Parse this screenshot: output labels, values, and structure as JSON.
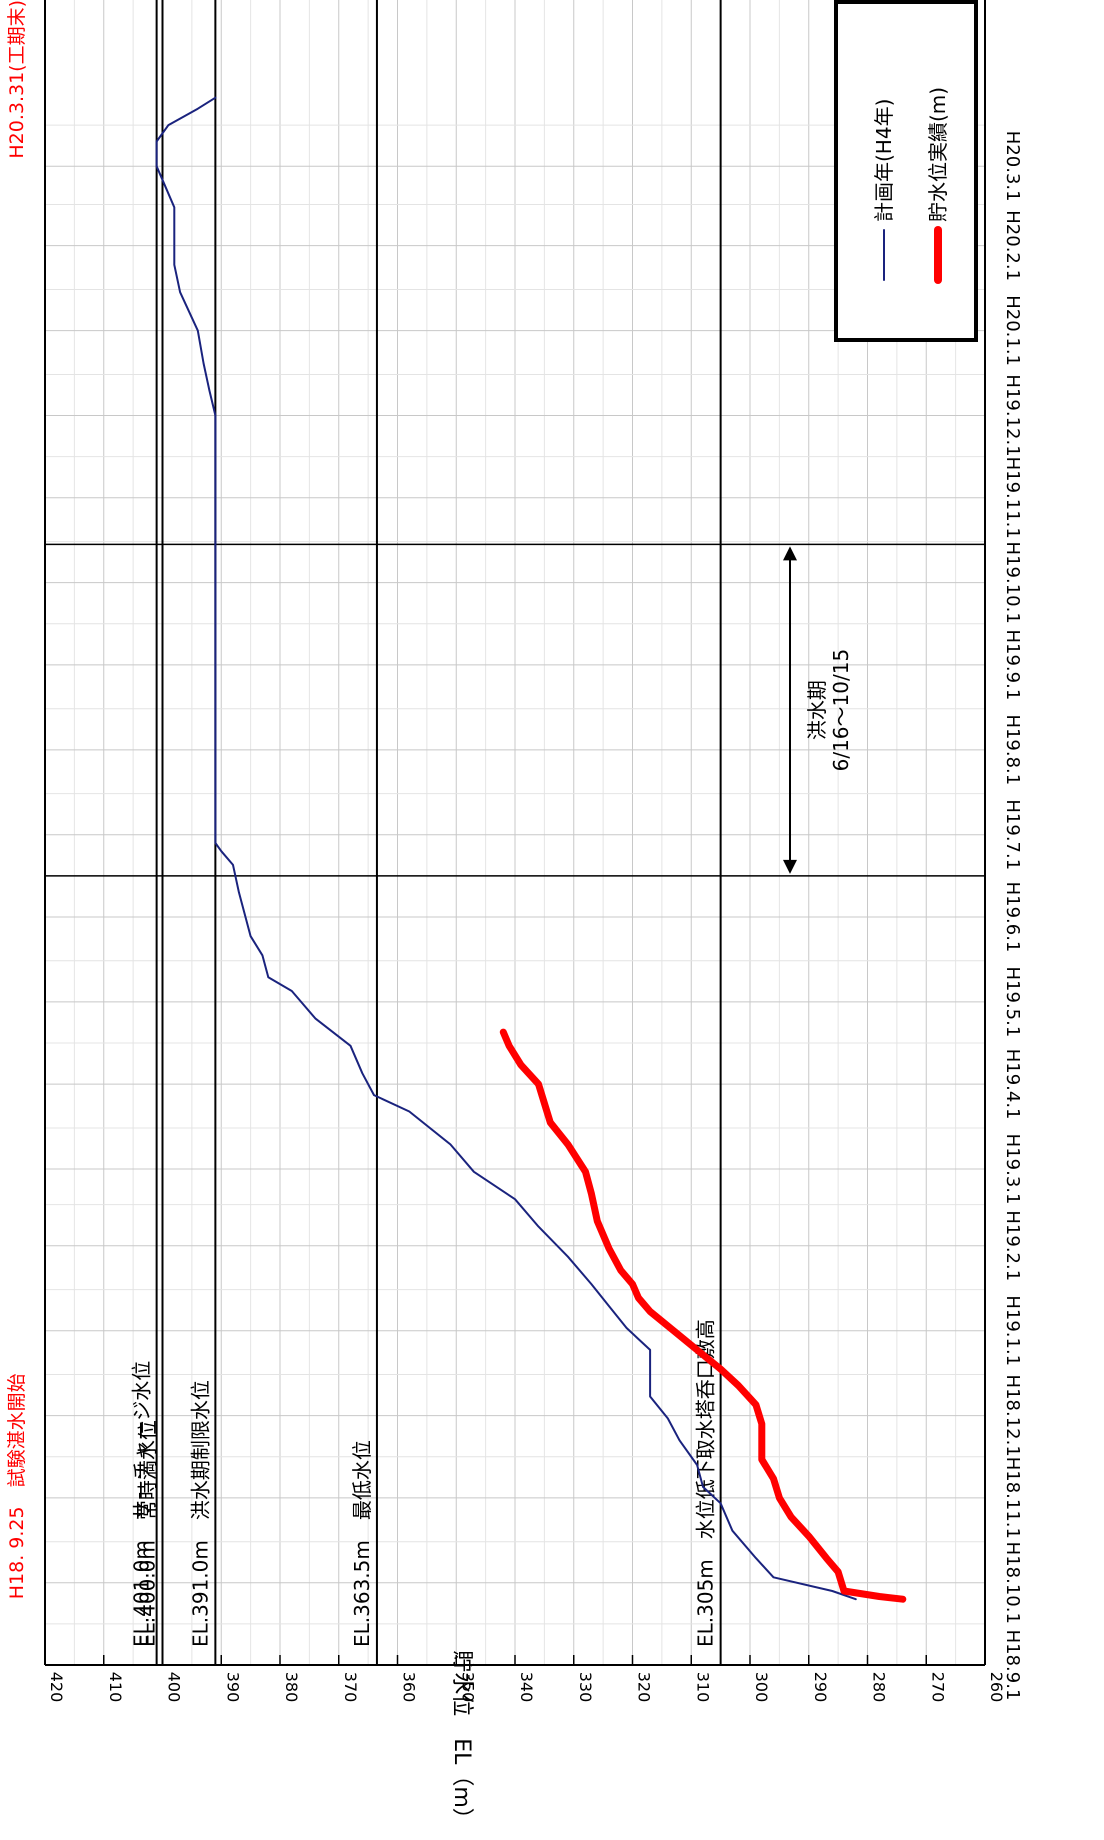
{
  "chart_data": {
    "type": "line",
    "orientation": "rotated-90-clockwise",
    "ylabel": "貯水位　EL（m）",
    "y_ticks": [
      260,
      270,
      280,
      290,
      300,
      310,
      320,
      330,
      340,
      350,
      360,
      370,
      380,
      390,
      400,
      410,
      420
    ],
    "ylim": [
      260,
      420
    ],
    "x_tick_labels": [
      "H18.9.1",
      "H18.10.1",
      "H18.11.1",
      "H18.12.1",
      "H19.1.1",
      "H19.2.1",
      "H19.3.1",
      "H19.4.1",
      "H19.5.1",
      "H19.6.1",
      "H19.7.1",
      "H19.8.1",
      "H19.9.1",
      "H19.10.1",
      "H19.11.1",
      "H19.12.1",
      "H20.1.1",
      "H20.2.1",
      "H20.3.1"
    ],
    "xlim": [
      "2006-09-01",
      "2008-03-31"
    ],
    "grid": true,
    "legend_position": "top-right",
    "series": [
      {
        "name": "計画年(H4年)",
        "color": "#1a237e",
        "points": [
          [
            "2006-09-25",
            282
          ],
          [
            "2006-09-28",
            286
          ],
          [
            "2006-10-03",
            296
          ],
          [
            "2006-10-10",
            299
          ],
          [
            "2006-10-20",
            303
          ],
          [
            "2006-10-30",
            305
          ],
          [
            "2006-11-05",
            308
          ],
          [
            "2006-11-13",
            309
          ],
          [
            "2006-11-22",
            312
          ],
          [
            "2006-11-30",
            314
          ],
          [
            "2006-12-08",
            317
          ],
          [
            "2006-12-25",
            317
          ],
          [
            "2007-01-02",
            321
          ],
          [
            "2007-01-10",
            324
          ],
          [
            "2007-01-18",
            327
          ],
          [
            "2007-01-28",
            331
          ],
          [
            "2007-02-08",
            336
          ],
          [
            "2007-02-18",
            340
          ],
          [
            "2007-02-28",
            347
          ],
          [
            "2007-03-10",
            351
          ],
          [
            "2007-03-22",
            358
          ],
          [
            "2007-03-28",
            364
          ],
          [
            "2007-04-05",
            366
          ],
          [
            "2007-04-15",
            368
          ],
          [
            "2007-04-25",
            374
          ],
          [
            "2007-05-05",
            378
          ],
          [
            "2007-05-10",
            382
          ],
          [
            "2007-05-18",
            383
          ],
          [
            "2007-05-25",
            385
          ],
          [
            "2007-06-10",
            387
          ],
          [
            "2007-06-20",
            388
          ],
          [
            "2007-06-25",
            390
          ],
          [
            "2007-06-28",
            391
          ],
          [
            "2007-07-01",
            391
          ],
          [
            "2007-10-15",
            391
          ],
          [
            "2007-11-01",
            391
          ],
          [
            "2007-12-01",
            391
          ],
          [
            "2007-12-10",
            392
          ],
          [
            "2007-12-20",
            393
          ],
          [
            "2008-01-01",
            394
          ],
          [
            "2008-01-15",
            397
          ],
          [
            "2008-01-25",
            398
          ],
          [
            "2008-02-15",
            398
          ],
          [
            "2008-03-01",
            401
          ],
          [
            "2008-03-10",
            401
          ],
          [
            "2008-03-16",
            399
          ],
          [
            "2008-03-22",
            394
          ],
          [
            "2008-03-26",
            391
          ]
        ]
      },
      {
        "name": "貯水位実績(m)",
        "color": "#ff0000",
        "points": [
          [
            "2006-09-25",
            274
          ],
          [
            "2006-09-26",
            278
          ],
          [
            "2006-09-28",
            284
          ],
          [
            "2006-10-05",
            285
          ],
          [
            "2006-10-10",
            287
          ],
          [
            "2006-10-18",
            290
          ],
          [
            "2006-10-25",
            293
          ],
          [
            "2006-11-01",
            295
          ],
          [
            "2006-11-08",
            296
          ],
          [
            "2006-11-15",
            298
          ],
          [
            "2006-11-28",
            298
          ],
          [
            "2006-12-05",
            299
          ],
          [
            "2006-12-12",
            302
          ],
          [
            "2006-12-18",
            305
          ],
          [
            "2006-12-25",
            309
          ],
          [
            "2007-01-01",
            313
          ],
          [
            "2007-01-08",
            317
          ],
          [
            "2007-01-13",
            319
          ],
          [
            "2007-01-18",
            320
          ],
          [
            "2007-01-23",
            322
          ],
          [
            "2007-01-31",
            324
          ],
          [
            "2007-02-10",
            326
          ],
          [
            "2007-02-20",
            327
          ],
          [
            "2007-02-28",
            328
          ],
          [
            "2007-03-10",
            331
          ],
          [
            "2007-03-18",
            334
          ],
          [
            "2007-03-25",
            335
          ],
          [
            "2007-04-01",
            336
          ],
          [
            "2007-04-08",
            339
          ],
          [
            "2007-04-15",
            341
          ],
          [
            "2007-04-20",
            342
          ]
        ]
      }
    ],
    "reference_lines": [
      {
        "label": "EL.401.0m　サーチャージ水位",
        "value": 401
      },
      {
        "label": "EL.400.0m　常時満水位",
        "value": 400
      },
      {
        "label": "EL.391.0m　洪水期制限水位",
        "value": 391
      },
      {
        "label": "EL.363.5m　最低水位",
        "value": 363.5
      },
      {
        "label": "EL.305m　水位低下取水塔呑口敷高",
        "value": 305
      }
    ],
    "vertical_markers": [
      {
        "label": "H18. 9.25　試験湛水開始",
        "date": "2006-09-25",
        "color": "#ff0000"
      },
      {
        "label": "H20.3.31(工期末)",
        "date": "2008-03-31",
        "color": "#ff0000"
      }
    ],
    "period": {
      "label": "洪水期",
      "range_label": "6/16～10/15",
      "start": "2007-06-16",
      "end": "2007-10-15"
    }
  }
}
